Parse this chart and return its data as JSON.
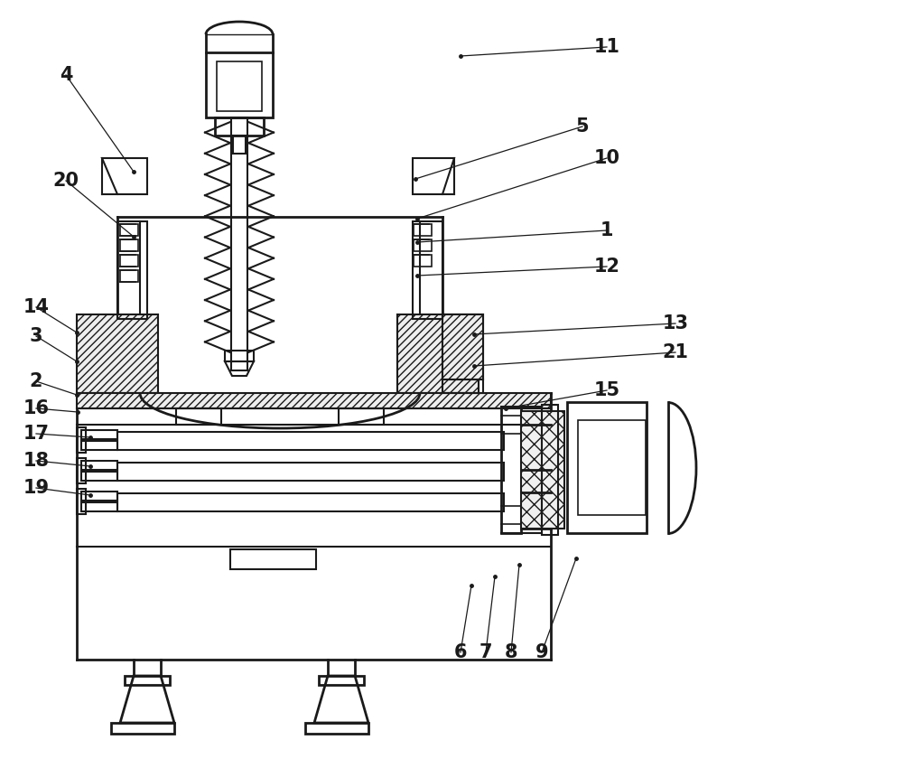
{
  "bg_color": "#ffffff",
  "line_color": "#1a1a1a",
  "figsize": [
    10.0,
    8.5
  ],
  "dpi": 100,
  "labels": [
    [
      4,
      73,
      83,
      148,
      190
    ],
    [
      20,
      73,
      200,
      148,
      262
    ],
    [
      11,
      672,
      52,
      510,
      62
    ],
    [
      5,
      645,
      140,
      460,
      198
    ],
    [
      10,
      672,
      175,
      462,
      242
    ],
    [
      1,
      672,
      255,
      462,
      268
    ],
    [
      12,
      672,
      295,
      462,
      305
    ],
    [
      14,
      40,
      340,
      85,
      368
    ],
    [
      3,
      40,
      372,
      85,
      400
    ],
    [
      2,
      40,
      422,
      85,
      437
    ],
    [
      13,
      748,
      358,
      525,
      370
    ],
    [
      21,
      748,
      390,
      525,
      405
    ],
    [
      15,
      672,
      432,
      560,
      452
    ],
    [
      16,
      40,
      452,
      86,
      456
    ],
    [
      17,
      40,
      480,
      100,
      484
    ],
    [
      18,
      40,
      510,
      100,
      516
    ],
    [
      19,
      40,
      540,
      100,
      548
    ],
    [
      6,
      510,
      722,
      522,
      648
    ],
    [
      7,
      538,
      722,
      548,
      638
    ],
    [
      8,
      566,
      722,
      575,
      625
    ],
    [
      9,
      600,
      722,
      638,
      618
    ]
  ]
}
